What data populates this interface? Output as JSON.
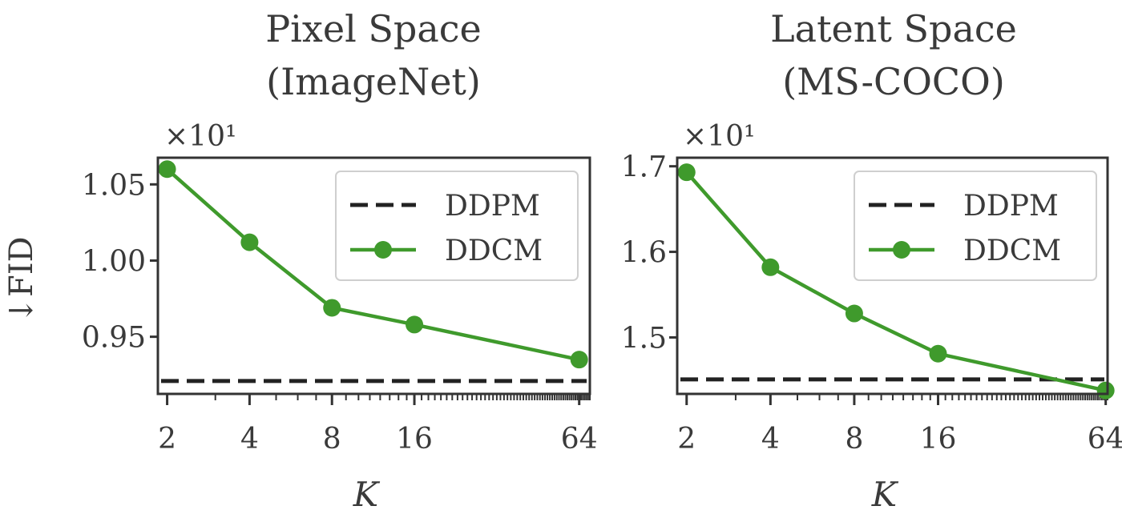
{
  "shared": {
    "ylabel": "↓FID",
    "xlabel": "K"
  },
  "colors": {
    "ddpm": "#222222",
    "ddcm": "#3f9a2c",
    "axis": "#333333",
    "text": "#3a3a3a"
  },
  "chart_data": [
    {
      "type": "line",
      "title": [
        "Pixel Space",
        "(ImageNet)"
      ],
      "multiplier": "×10¹",
      "xscale": "log2",
      "x": [
        2,
        4,
        8,
        16,
        64
      ],
      "xticklabels": [
        "2",
        "4",
        "8",
        "16",
        "64"
      ],
      "xlim": [
        1.85,
        70
      ],
      "ylim": [
        0.9125,
        1.0675
      ],
      "yticks": [
        0.95,
        1.0,
        1.05
      ],
      "yticklabels": [
        "0.95",
        "1.00",
        "1.05"
      ],
      "xlabel": "K",
      "ylabel": "↓FID",
      "series": [
        {
          "name": "DDPM",
          "style": "dashed",
          "values": [
            0.921,
            0.921,
            0.921,
            0.921,
            0.921
          ]
        },
        {
          "name": "DDCM",
          "style": "line-marker",
          "values": [
            1.06,
            1.012,
            0.969,
            0.958,
            0.935
          ]
        }
      ],
      "legend": "top-right"
    },
    {
      "type": "line",
      "title": [
        "Latent Space",
        "(MS-COCO)"
      ],
      "multiplier": "×10¹",
      "xscale": "log2",
      "x": [
        2,
        4,
        8,
        16,
        64
      ],
      "xticklabels": [
        "2",
        "4",
        "8",
        "16",
        "64"
      ],
      "xlim": [
        1.85,
        65
      ],
      "ylim": [
        1.434,
        1.71
      ],
      "yticks": [
        1.5,
        1.6,
        1.7
      ],
      "yticklabels": [
        "1.5",
        "1.6",
        "1.7"
      ],
      "xlabel": "K",
      "series": [
        {
          "name": "DDPM",
          "style": "dashed",
          "values": [
            1.451,
            1.451,
            1.451,
            1.451,
            1.451
          ]
        },
        {
          "name": "DDCM",
          "style": "line-marker",
          "values": [
            1.693,
            1.582,
            1.528,
            1.481,
            1.438
          ]
        }
      ],
      "legend": "top-right"
    }
  ]
}
